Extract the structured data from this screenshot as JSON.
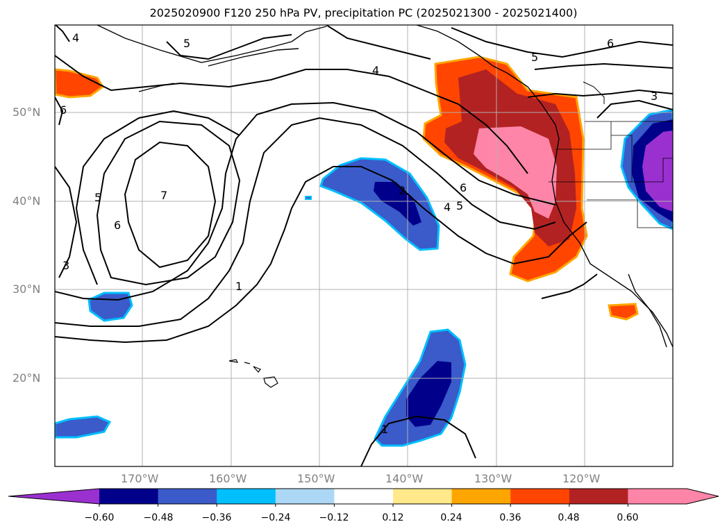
{
  "title": "2025020900 F120 250 hPa PV, precipitation PC (2025021300 - 2025021400)",
  "lat_labels": [
    "50°N",
    "40°N",
    "30°N",
    "20°N"
  ],
  "lon_labels": [
    "170°W",
    "160°W",
    "150°W",
    "140°W",
    "130°W",
    "120°W"
  ],
  "colorbar": {
    "ticks": [
      "−0.60",
      "−0.48",
      "−0.36",
      "−0.24",
      "−0.12",
      "0.12",
      "0.24",
      "0.36",
      "0.48",
      "0.60"
    ],
    "colors": [
      "#9b30d0",
      "#00008b",
      "#3a5bc9",
      "#00bfff",
      "#add8f5",
      "#ffffff",
      "#ffe98a",
      "#ffa500",
      "#ff4500",
      "#b22222",
      "#ff85a8",
      "#ff85a8"
    ]
  },
  "contour_labels": [
    "4",
    "5",
    "4",
    "5",
    "6",
    "3",
    "6",
    "5",
    "6",
    "7",
    "3",
    "1",
    "2",
    "6",
    "4",
    "5",
    "1"
  ]
}
